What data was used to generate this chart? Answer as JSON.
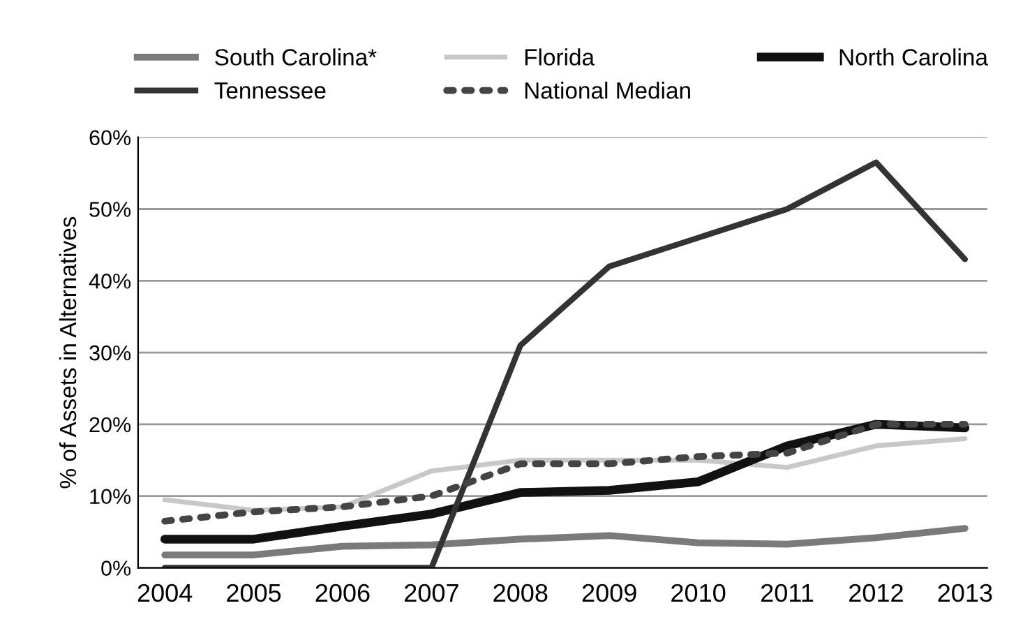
{
  "chart_data": {
    "type": "line",
    "ylabel": "% of Assets in Alternatives",
    "categories": [
      "2004",
      "2005",
      "2006",
      "2007",
      "2008",
      "2009",
      "2010",
      "2011",
      "2012",
      "2013"
    ],
    "series": [
      {
        "name": "South Carolina*",
        "color": "#7a7a7a",
        "values": [
          1.8,
          1.8,
          3,
          3.2,
          4,
          4.5,
          3.5,
          3.3,
          4.2,
          5.5
        ],
        "line_style": "solid"
      },
      {
        "name": "Florida",
        "color": "#c8c8c8",
        "values": [
          9.5,
          8,
          8.5,
          13.5,
          15,
          15,
          15,
          14,
          17,
          18
        ],
        "line_style": "solid"
      },
      {
        "name": "North Carolina",
        "color": "#111111",
        "values": [
          4,
          4,
          5.8,
          7.5,
          10.5,
          10.8,
          12,
          17,
          20,
          19.5
        ],
        "line_style": "solid"
      },
      {
        "name": "Tennessee",
        "color": "#333333",
        "values": [
          0,
          0,
          0,
          0,
          31,
          42,
          46,
          50,
          56.5,
          43
        ],
        "line_style": "solid"
      },
      {
        "name": "National Median",
        "color": "#444444",
        "values": [
          6.5,
          7.8,
          8.5,
          10,
          14.5,
          14.5,
          15.5,
          16,
          20,
          20
        ],
        "line_style": "dotted"
      }
    ],
    "ylim": [
      0,
      60
    ],
    "yticks": [
      {
        "value": 0,
        "label": "0%"
      },
      {
        "value": 10,
        "label": "10%"
      },
      {
        "value": 20,
        "label": "20%"
      },
      {
        "value": 30,
        "label": "30%"
      },
      {
        "value": 40,
        "label": "40%"
      },
      {
        "value": 50,
        "label": "50%"
      },
      {
        "value": 60,
        "label": "60%"
      }
    ],
    "grid": "y",
    "legend": "top",
    "marker": "none"
  }
}
